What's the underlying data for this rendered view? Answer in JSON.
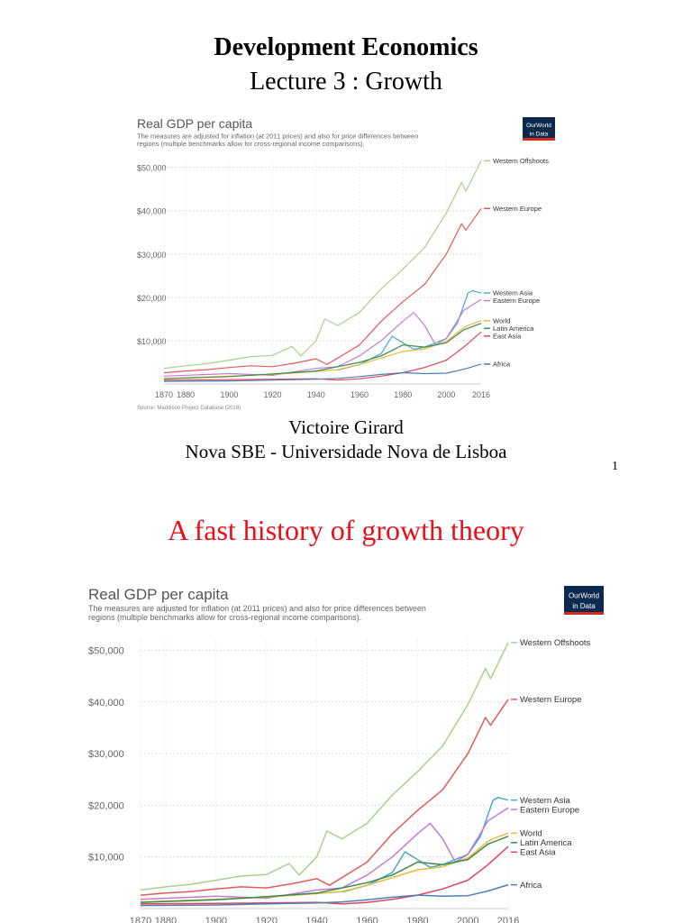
{
  "slide": {
    "title": "Development Economics",
    "subtitle": "Lecture 3 : Growth",
    "author": "Victoire Girard",
    "affiliation": "Nova SBE - Universidade Nova de Lisboa",
    "page_number": "1"
  },
  "section": {
    "heading": "A fast history of growth theory"
  },
  "chart_data": {
    "type": "line",
    "title": "Real GDP per capita",
    "subtitle": "The measures are adjusted for inflation (at 2011 prices) and also for price differences between regions (multiple benchmarks allow for cross-regional income comparisons).",
    "logo_text": "Our World in Data",
    "source": "Source: Maddison Project Database (2018)",
    "xticks": [
      "1870",
      "1880",
      "1900",
      "1920",
      "1940",
      "1960",
      "1980",
      "2000",
      "2016"
    ],
    "yticks": [
      "$10,000",
      "$20,000",
      "$30,000",
      "$40,000",
      "$50,000"
    ],
    "xlim": [
      1870,
      2016
    ],
    "ylim": [
      0,
      52000
    ],
    "grid": true,
    "legend": "right",
    "series": [
      {
        "name": "Western Offshoots",
        "color": "#a9d18e",
        "x": [
          1870,
          1880,
          1890,
          1900,
          1910,
          1920,
          1929,
          1933,
          1940,
          1944,
          1950,
          1960,
          1970,
          1980,
          1990,
          2000,
          2007,
          2009,
          2016
        ],
        "y": [
          3600,
          4200,
          4700,
          5500,
          6300,
          6600,
          8700,
          6500,
          10000,
          15000,
          13500,
          16500,
          22000,
          26500,
          31500,
          39500,
          46500,
          44500,
          51500
        ]
      },
      {
        "name": "Western Europe",
        "color": "#e25a5a",
        "x": [
          1870,
          1880,
          1890,
          1900,
          1910,
          1920,
          1930,
          1940,
          1945,
          1950,
          1960,
          1970,
          1980,
          1990,
          2000,
          2007,
          2009,
          2016
        ],
        "y": [
          2600,
          3000,
          3300,
          3800,
          4200,
          4000,
          4800,
          5800,
          4500,
          6000,
          9000,
          14500,
          19000,
          23000,
          30000,
          37000,
          35500,
          40500
        ]
      },
      {
        "name": "Western Asia",
        "color": "#4aa9c9",
        "x": [
          1950,
          1960,
          1970,
          1975,
          1980,
          1985,
          1990,
          2000,
          2005,
          2010,
          2012,
          2016
        ],
        "y": [
          3200,
          4500,
          7000,
          11000,
          9500,
          8000,
          8500,
          10500,
          14000,
          21000,
          21500,
          21000
        ]
      },
      {
        "name": "Eastern Europe",
        "color": "#c37bd4",
        "x": [
          1870,
          1900,
          1920,
          1940,
          1950,
          1960,
          1970,
          1980,
          1985,
          1990,
          1995,
          2000,
          2008,
          2016
        ],
        "y": [
          1800,
          2400,
          2000,
          3600,
          4000,
          6500,
          10000,
          14500,
          16500,
          13500,
          9000,
          10500,
          17000,
          19500
        ]
      },
      {
        "name": "World",
        "color": "#e8b93a",
        "x": [
          1870,
          1900,
          1920,
          1940,
          1950,
          1960,
          1970,
          1980,
          1990,
          2000,
          2008,
          2010,
          2016
        ],
        "y": [
          1300,
          1800,
          2200,
          2900,
          3300,
          4500,
          6000,
          7500,
          8100,
          9800,
          13000,
          13500,
          14600
        ]
      },
      {
        "name": "Latin America",
        "color": "#3c8c4f",
        "x": [
          1870,
          1900,
          1920,
          1940,
          1950,
          1960,
          1970,
          1980,
          1990,
          2000,
          2008,
          2016
        ],
        "y": [
          1200,
          1700,
          2300,
          3000,
          4000,
          5000,
          6500,
          9000,
          8500,
          9500,
          12500,
          14000
        ]
      },
      {
        "name": "East Asia",
        "color": "#e0455a",
        "x": [
          1870,
          1900,
          1920,
          1940,
          1950,
          1960,
          1970,
          1980,
          1990,
          2000,
          2008,
          2016
        ],
        "y": [
          900,
          1000,
          1100,
          1200,
          900,
          1200,
          1800,
          2600,
          3800,
          5500,
          8500,
          12000
        ]
      },
      {
        "name": "Africa",
        "color": "#4c7fb5",
        "x": [
          1870,
          1900,
          1920,
          1940,
          1950,
          1960,
          1970,
          1980,
          1990,
          2000,
          2008,
          2016
        ],
        "y": [
          600,
          700,
          900,
          1100,
          1300,
          1700,
          2200,
          2600,
          2400,
          2500,
          3400,
          4600
        ]
      }
    ]
  }
}
